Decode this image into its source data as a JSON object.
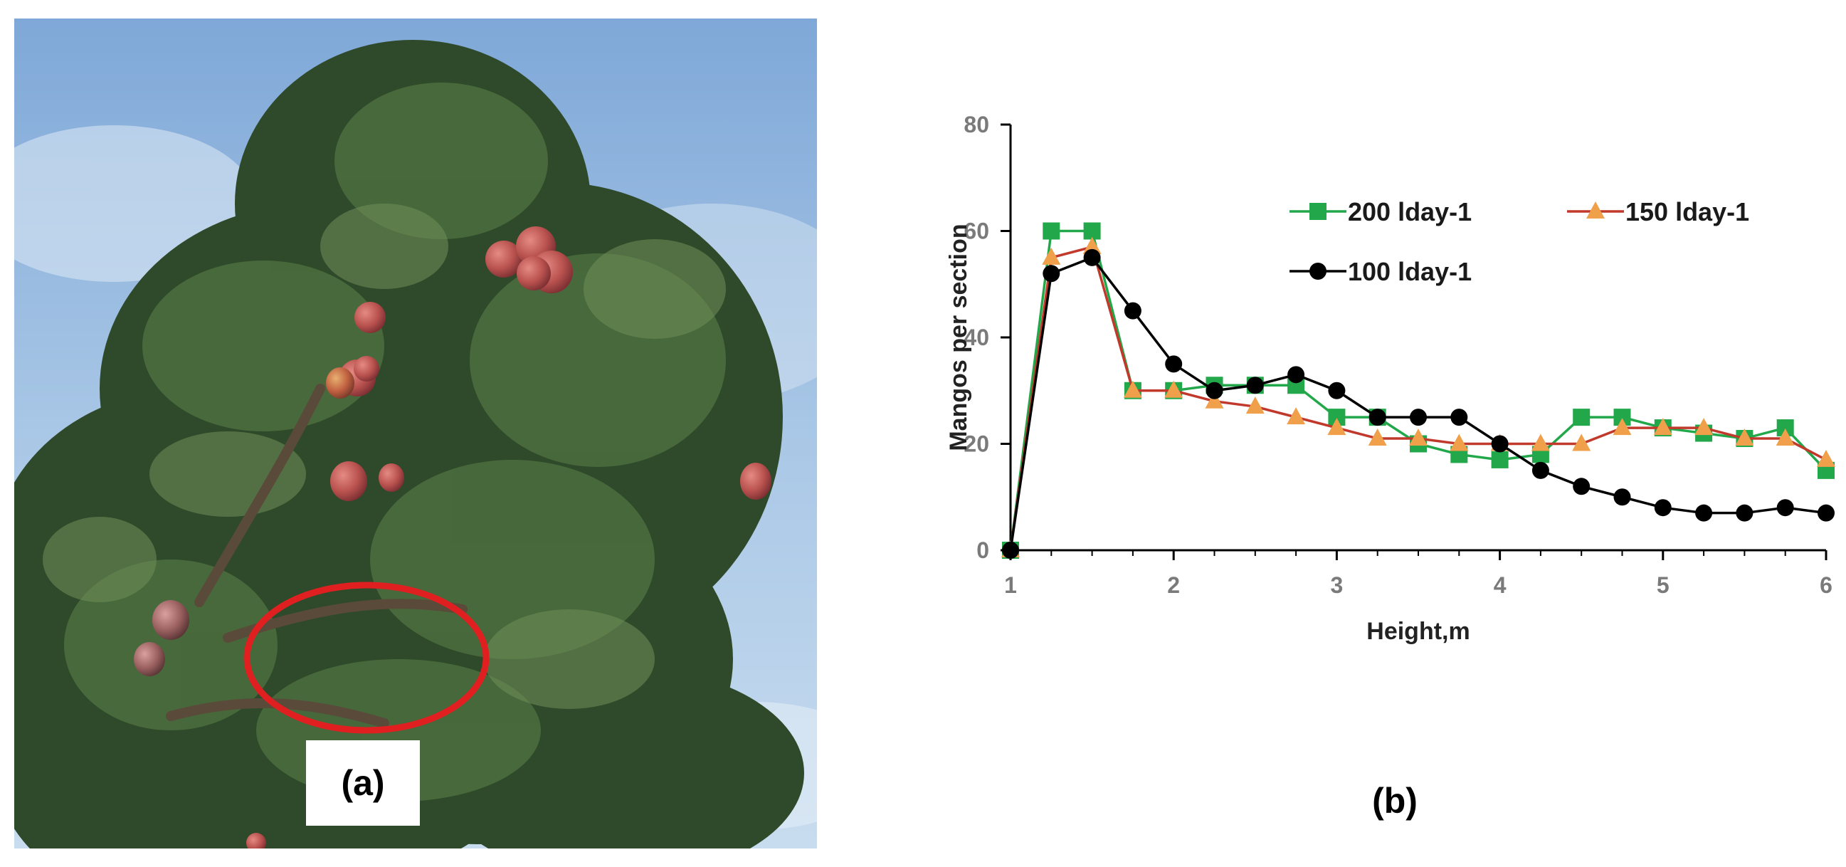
{
  "panels": {
    "a_label": "(a)",
    "b_label": "(b)"
  },
  "photo": {
    "icon": "mango-tree-photo-icon",
    "sky_color": "#9cbfe2",
    "foliage_color": "#2f4a2a",
    "fruit_color": "#c0605a",
    "highlight_color": "#e02020"
  },
  "chart_data": {
    "type": "line",
    "xlabel": "Height,m",
    "ylabel": "Mangos  per section",
    "xlim": [
      1,
      6
    ],
    "ylim": [
      0,
      80
    ],
    "x_ticks": [
      "1",
      "2",
      "3",
      "4",
      "5",
      "6"
    ],
    "y_ticks": [
      "0",
      "20",
      "40",
      "60",
      "80"
    ],
    "grid": false,
    "legend_placement": "top-right",
    "series": [
      {
        "name": "200 lday-1",
        "color": "#22a84a",
        "marker": "square",
        "x": [
          1,
          1.25,
          1.5,
          1.75,
          2,
          2.25,
          2.5,
          2.75,
          3,
          3.25,
          3.5,
          3.75,
          4,
          4.25,
          4.5,
          4.75,
          5,
          5.25,
          5.5,
          5.75,
          6
        ],
        "y": [
          0,
          60,
          60,
          30,
          30,
          31,
          31,
          31,
          25,
          25,
          20,
          18,
          17,
          18,
          25,
          25,
          23,
          22,
          21,
          23,
          15
        ]
      },
      {
        "name": "150 lday-1",
        "color": "#c0392b",
        "marker_color": "#f0a04b",
        "marker": "triangle",
        "x": [
          1,
          1.25,
          1.5,
          1.75,
          2,
          2.25,
          2.5,
          2.75,
          3,
          3.25,
          3.5,
          3.75,
          4,
          4.25,
          4.5,
          4.75,
          5,
          5.25,
          5.5,
          5.75,
          6
        ],
        "y": [
          0,
          55,
          57,
          30,
          30,
          28,
          27,
          25,
          23,
          21,
          21,
          20,
          20,
          20,
          20,
          23,
          23,
          23,
          21,
          21,
          17
        ]
      },
      {
        "name": "100 lday-1",
        "color": "#000000",
        "marker": "circle",
        "x": [
          1,
          1.25,
          1.5,
          1.75,
          2,
          2.25,
          2.5,
          2.75,
          3,
          3.25,
          3.5,
          3.75,
          4,
          4.25,
          4.5,
          4.75,
          5,
          5.25,
          5.5,
          5.75,
          6
        ],
        "y": [
          0,
          52,
          55,
          45,
          35,
          30,
          31,
          33,
          30,
          25,
          25,
          25,
          20,
          15,
          12,
          10,
          8,
          7,
          7,
          8,
          7
        ]
      }
    ]
  }
}
